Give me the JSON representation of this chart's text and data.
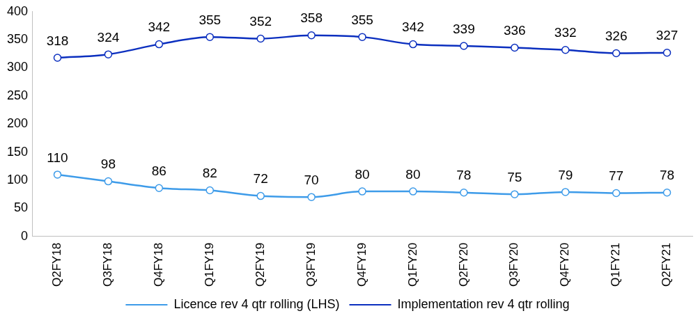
{
  "chart_data": {
    "type": "line",
    "categories": [
      "Q2FY18",
      "Q3FY18",
      "Q4FY18",
      "Q1FY19",
      "Q2FY19",
      "Q3FY19",
      "Q4FY19",
      "Q1FY20",
      "Q2FY20",
      "Q3FY20",
      "Q4FY20",
      "Q1FY21",
      "Q2FY21"
    ],
    "series": [
      {
        "name": "Licence rev 4 qtr rolling (LHS)",
        "color": "#3d9be9",
        "values": [
          110,
          98,
          86,
          82,
          72,
          70,
          80,
          80,
          78,
          75,
          79,
          77,
          78
        ]
      },
      {
        "name": "Implementation rev 4 qtr rolling",
        "color": "#0b2fbf",
        "values": [
          318,
          324,
          342,
          355,
          352,
          358,
          355,
          342,
          339,
          336,
          332,
          326,
          327
        ]
      }
    ],
    "ylim": [
      0,
      400
    ],
    "yticks": [
      0,
      50,
      100,
      150,
      200,
      250,
      300,
      350,
      400
    ],
    "grid": false,
    "legend": "bottom",
    "marker": "circle",
    "line_style": "solid",
    "data_labels": true
  }
}
